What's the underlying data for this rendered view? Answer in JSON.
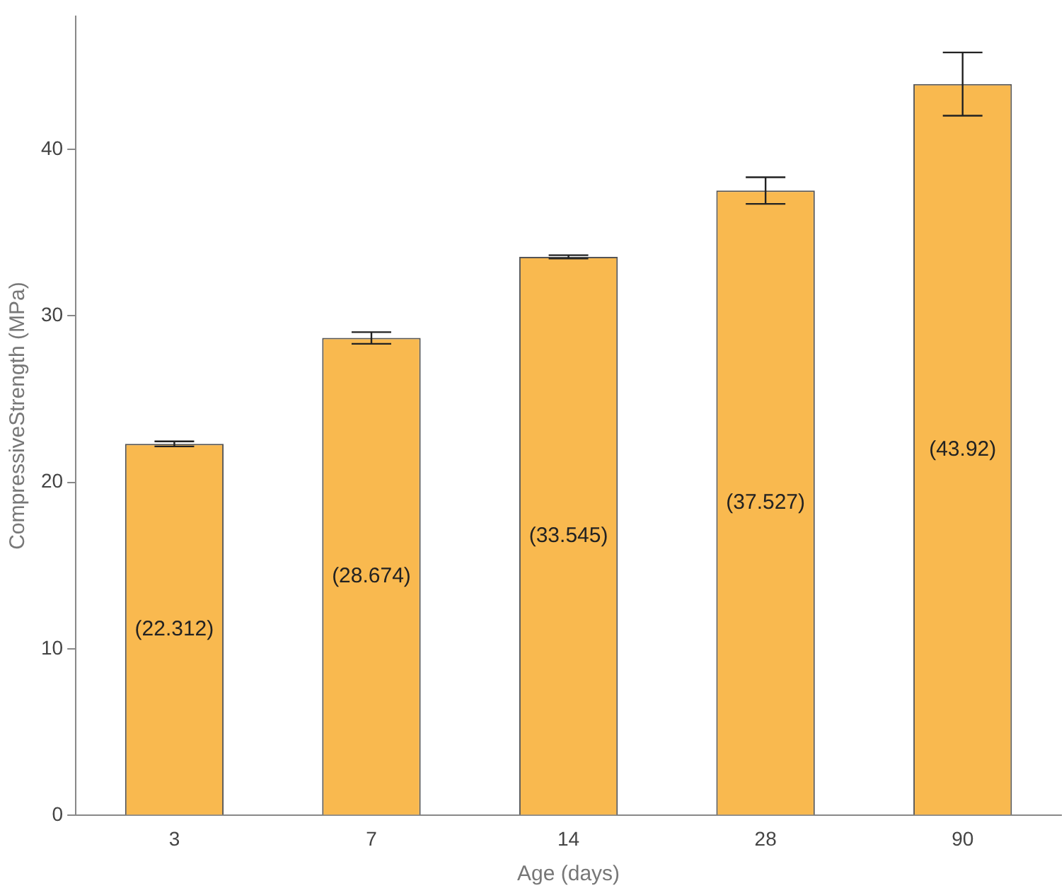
{
  "chart_data": {
    "type": "bar",
    "xlabel": "Age (days)",
    "ylabel": "CompressiveStrength (MPa)",
    "categories": [
      "3",
      "7",
      "14",
      "28",
      "90"
    ],
    "values": [
      22.312,
      28.674,
      33.545,
      37.527,
      43.92
    ],
    "value_labels": [
      "(22.312)",
      "(28.674)",
      "(33.545)",
      "(37.527)",
      "(43.92)"
    ],
    "errors": [
      0.15,
      0.35,
      0.1,
      0.8,
      1.9
    ],
    "color": "#f9b94f",
    "ylim": [
      0,
      48
    ],
    "yticks": [
      0,
      10,
      20,
      30,
      40
    ],
    "grid": false,
    "legend": false
  }
}
